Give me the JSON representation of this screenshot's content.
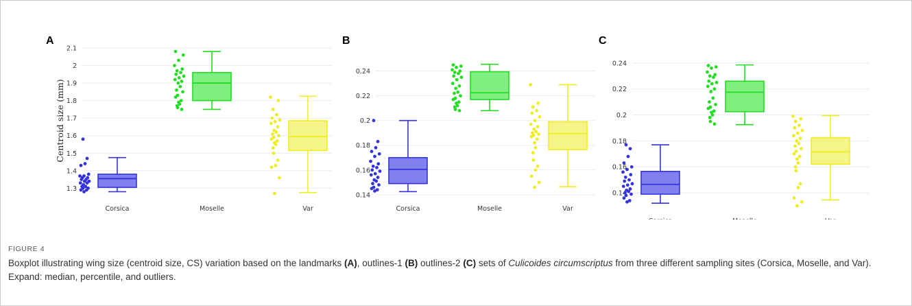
{
  "figure_label": "FIGURE 4",
  "caption": {
    "part1": "Boxplot illustrating wing size (centroid size, CS) variation based on the landmarks ",
    "ref_a": "(A)",
    "part2": ", outlines-1 ",
    "ref_b": "(B)",
    "part3": " outlines-2 ",
    "ref_c": "(C)",
    "part4": " sets of ",
    "species": "Culicoides circumscriptus",
    "part5": " from three different sampling sites (Corsica, Moselle, and Var). Expand: median, percentile, and outliers."
  },
  "chart_data": [
    {
      "panel": "A",
      "type": "box",
      "ylabel": "Centroid size (mm)",
      "ylim": [
        1.27,
        2.1
      ],
      "yticks": [
        1.3,
        1.4,
        1.5,
        1.6,
        1.7,
        1.8,
        1.9,
        2,
        2.1
      ],
      "ytick_labels": [
        "1.3",
        "1.4",
        "1.5",
        "1.6",
        "1.7",
        "1.8",
        "1.9",
        "2",
        "2.1"
      ],
      "grid": true,
      "categories": [
        "Corsica",
        "Moselle",
        "Var"
      ],
      "colors": [
        "#3333dd",
        "#22dd22",
        "#eeee22"
      ],
      "fill_colors": [
        "#8080ee",
        "#80ee80",
        "#f4f488"
      ],
      "boxes": [
        {
          "min": 1.28,
          "q1": 1.305,
          "median": 1.355,
          "q3": 1.38,
          "max": 1.475
        },
        {
          "min": 1.75,
          "q1": 1.8,
          "median": 1.9,
          "q3": 1.96,
          "max": 2.08
        },
        {
          "min": 1.275,
          "q1": 1.515,
          "median": 1.595,
          "q3": 1.685,
          "max": 1.825
        }
      ],
      "points": [
        [
          1.58,
          1.47,
          1.44,
          1.43,
          1.38,
          1.37,
          1.37,
          1.36,
          1.36,
          1.35,
          1.35,
          1.34,
          1.34,
          1.33,
          1.33,
          1.32,
          1.31,
          1.31,
          1.3,
          1.3,
          1.29,
          1.29,
          1.28
        ],
        [
          2.08,
          2.06,
          2.03,
          2.0,
          1.98,
          1.97,
          1.96,
          1.95,
          1.94,
          1.93,
          1.92,
          1.91,
          1.9,
          1.88,
          1.86,
          1.85,
          1.83,
          1.82,
          1.8,
          1.79,
          1.78,
          1.77,
          1.76,
          1.75
        ],
        [
          1.82,
          1.8,
          1.75,
          1.72,
          1.7,
          1.69,
          1.68,
          1.67,
          1.65,
          1.63,
          1.62,
          1.61,
          1.6,
          1.59,
          1.58,
          1.57,
          1.56,
          1.55,
          1.53,
          1.5,
          1.46,
          1.43,
          1.42,
          1.36,
          1.27
        ]
      ]
    },
    {
      "panel": "B",
      "type": "box",
      "ylabel": "",
      "ylim": [
        0.141,
        0.247
      ],
      "yticks": [
        0.14,
        0.16,
        0.18,
        0.2,
        0.22,
        0.24
      ],
      "ytick_labels": [
        "0.14",
        "0.16",
        "0.18",
        "0.2",
        "0.22",
        "0.24"
      ],
      "grid": true,
      "categories": [
        "Corsica",
        "Moselle",
        "Var"
      ],
      "colors": [
        "#3333dd",
        "#22dd22",
        "#eeee22"
      ],
      "fill_colors": [
        "#8080ee",
        "#80ee80",
        "#f4f488"
      ],
      "boxes": [
        {
          "min": 0.1425,
          "q1": 0.149,
          "median": 0.1605,
          "q3": 0.17,
          "max": 0.2
        },
        {
          "min": 0.208,
          "q1": 0.217,
          "median": 0.2225,
          "q3": 0.2395,
          "max": 0.2455
        },
        {
          "min": 0.1465,
          "q1": 0.1765,
          "median": 0.1895,
          "q3": 0.199,
          "max": 0.229
        }
      ],
      "points": [
        [
          0.2,
          0.183,
          0.178,
          0.175,
          0.173,
          0.171,
          0.167,
          0.165,
          0.163,
          0.162,
          0.16,
          0.159,
          0.157,
          0.156,
          0.154,
          0.152,
          0.151,
          0.149,
          0.148,
          0.146,
          0.145,
          0.144,
          0.143
        ],
        [
          0.245,
          0.244,
          0.243,
          0.241,
          0.24,
          0.239,
          0.238,
          0.236,
          0.235,
          0.233,
          0.23,
          0.228,
          0.226,
          0.223,
          0.222,
          0.22,
          0.218,
          0.217,
          0.215,
          0.214,
          0.212,
          0.211,
          0.209,
          0.208
        ],
        [
          0.229,
          0.214,
          0.211,
          0.208,
          0.206,
          0.203,
          0.2,
          0.197,
          0.195,
          0.193,
          0.191,
          0.19,
          0.189,
          0.188,
          0.187,
          0.185,
          0.182,
          0.178,
          0.174,
          0.168,
          0.163,
          0.16,
          0.155,
          0.15,
          0.146
        ]
      ]
    },
    {
      "panel": "C",
      "type": "box",
      "ylabel": "",
      "ylim": [
        0.13,
        0.242
      ],
      "yticks": [
        0.14,
        0.16,
        0.18,
        0.2,
        0.22,
        0.24
      ],
      "ytick_labels": [
        "0.14",
        "0.16",
        "0.18",
        "0.2",
        "0.22",
        "0.24"
      ],
      "grid": true,
      "categories": [
        "Corsica",
        "Moselle",
        "Var"
      ],
      "colors": [
        "#3333dd",
        "#22dd22",
        "#eeee22"
      ],
      "fill_colors": [
        "#8080ee",
        "#80ee80",
        "#f4f488"
      ],
      "boxes": [
        {
          "min": 0.132,
          "q1": 0.139,
          "median": 0.1465,
          "q3": 0.1565,
          "max": 0.177
        },
        {
          "min": 0.1925,
          "q1": 0.2025,
          "median": 0.2175,
          "q3": 0.226,
          "max": 0.2385
        },
        {
          "min": 0.1345,
          "q1": 0.162,
          "median": 0.1715,
          "q3": 0.1825,
          "max": 0.1995
        }
      ],
      "points": [
        [
          0.177,
          0.174,
          0.168,
          0.163,
          0.16,
          0.158,
          0.156,
          0.154,
          0.152,
          0.15,
          0.149,
          0.147,
          0.146,
          0.145,
          0.143,
          0.142,
          0.141,
          0.14,
          0.139,
          0.138,
          0.136,
          0.134,
          0.133
        ],
        [
          0.238,
          0.237,
          0.236,
          0.233,
          0.231,
          0.23,
          0.229,
          0.226,
          0.225,
          0.224,
          0.222,
          0.22,
          0.218,
          0.213,
          0.21,
          0.208,
          0.206,
          0.205,
          0.203,
          0.202,
          0.2,
          0.198,
          0.195,
          0.193
        ],
        [
          0.199,
          0.197,
          0.195,
          0.192,
          0.19,
          0.188,
          0.186,
          0.184,
          0.182,
          0.18,
          0.178,
          0.176,
          0.174,
          0.172,
          0.17,
          0.168,
          0.166,
          0.163,
          0.16,
          0.157,
          0.147,
          0.144,
          0.136,
          0.133,
          0.13
        ]
      ]
    }
  ]
}
